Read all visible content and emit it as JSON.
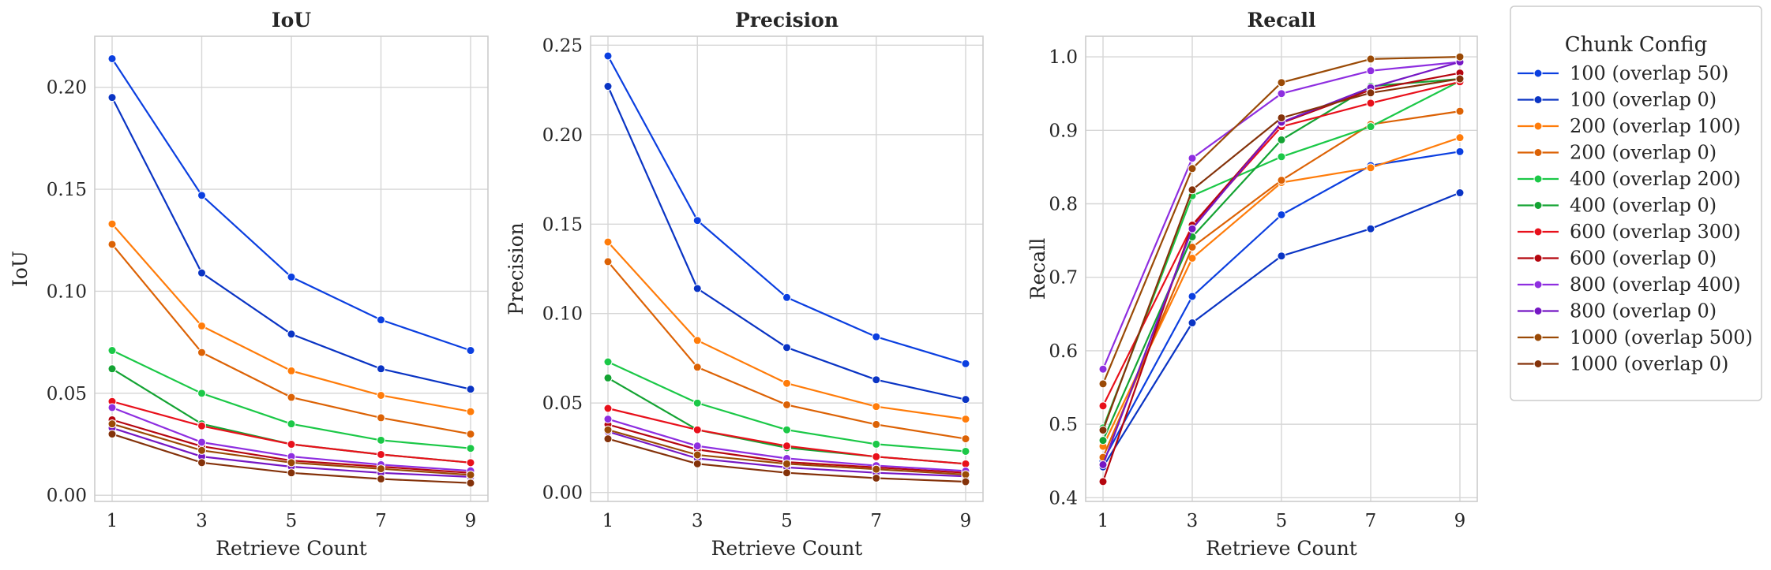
{
  "chart_data": [
    {
      "type": "line",
      "title": "IoU",
      "xlabel": "Retrieve Count",
      "ylabel": "IoU",
      "x": [
        1,
        3,
        5,
        7,
        9
      ],
      "xticks": [
        "1",
        "3",
        "5",
        "7",
        "9"
      ],
      "ylim": [
        -0.003,
        0.225
      ],
      "yticks": [
        "0.00",
        "0.05",
        "0.10",
        "0.15",
        "0.20"
      ],
      "grid": true,
      "series": [
        {
          "name": "100 (overlap 50)",
          "values": [
            0.214,
            0.147,
            0.107,
            0.086,
            0.071
          ]
        },
        {
          "name": "100 (overlap 0)",
          "values": [
            0.195,
            0.109,
            0.079,
            0.062,
            0.052
          ]
        },
        {
          "name": "200 (overlap 100)",
          "values": [
            0.133,
            0.083,
            0.061,
            0.049,
            0.041
          ]
        },
        {
          "name": "200 (overlap 0)",
          "values": [
            0.123,
            0.07,
            0.048,
            0.038,
            0.03
          ]
        },
        {
          "name": "400 (overlap 200)",
          "values": [
            0.071,
            0.05,
            0.035,
            0.027,
            0.023
          ]
        },
        {
          "name": "400 (overlap 0)",
          "values": [
            0.062,
            0.035,
            0.025,
            0.02,
            0.016
          ]
        },
        {
          "name": "600 (overlap 300)",
          "values": [
            0.046,
            0.034,
            0.025,
            0.02,
            0.016
          ]
        },
        {
          "name": "600 (overlap 0)",
          "values": [
            0.037,
            0.024,
            0.017,
            0.014,
            0.011
          ]
        },
        {
          "name": "800 (overlap 400)",
          "values": [
            0.043,
            0.026,
            0.019,
            0.015,
            0.012
          ]
        },
        {
          "name": "800 (overlap 0)",
          "values": [
            0.033,
            0.019,
            0.014,
            0.011,
            0.009
          ]
        },
        {
          "name": "1000 (overlap 500)",
          "values": [
            0.035,
            0.022,
            0.016,
            0.013,
            0.01
          ]
        },
        {
          "name": "1000 (overlap 0)",
          "values": [
            0.03,
            0.016,
            0.011,
            0.008,
            0.006
          ]
        }
      ]
    },
    {
      "type": "line",
      "title": "Precision",
      "xlabel": "Retrieve Count",
      "ylabel": "Precision",
      "x": [
        1,
        3,
        5,
        7,
        9
      ],
      "xticks": [
        "1",
        "3",
        "5",
        "7",
        "9"
      ],
      "ylim": [
        -0.005,
        0.255
      ],
      "yticks": [
        "0.00",
        "0.05",
        "0.10",
        "0.15",
        "0.20",
        "0.25"
      ],
      "grid": true,
      "series": [
        {
          "name": "100 (overlap 50)",
          "values": [
            0.244,
            0.152,
            0.109,
            0.087,
            0.072
          ]
        },
        {
          "name": "100 (overlap 0)",
          "values": [
            0.227,
            0.114,
            0.081,
            0.063,
            0.052
          ]
        },
        {
          "name": "200 (overlap 100)",
          "values": [
            0.14,
            0.085,
            0.061,
            0.048,
            0.041
          ]
        },
        {
          "name": "200 (overlap 0)",
          "values": [
            0.129,
            0.07,
            0.049,
            0.038,
            0.03
          ]
        },
        {
          "name": "400 (overlap 200)",
          "values": [
            0.073,
            0.05,
            0.035,
            0.027,
            0.023
          ]
        },
        {
          "name": "400 (overlap 0)",
          "values": [
            0.064,
            0.035,
            0.025,
            0.02,
            0.016
          ]
        },
        {
          "name": "600 (overlap 300)",
          "values": [
            0.047,
            0.035,
            0.026,
            0.02,
            0.016
          ]
        },
        {
          "name": "600 (overlap 0)",
          "values": [
            0.038,
            0.024,
            0.017,
            0.014,
            0.011
          ]
        },
        {
          "name": "800 (overlap 400)",
          "values": [
            0.041,
            0.026,
            0.019,
            0.015,
            0.012
          ]
        },
        {
          "name": "800 (overlap 0)",
          "values": [
            0.034,
            0.019,
            0.014,
            0.011,
            0.009
          ]
        },
        {
          "name": "1000 (overlap 500)",
          "values": [
            0.035,
            0.021,
            0.016,
            0.013,
            0.01
          ]
        },
        {
          "name": "1000 (overlap 0)",
          "values": [
            0.03,
            0.016,
            0.011,
            0.008,
            0.006
          ]
        }
      ]
    },
    {
      "type": "line",
      "title": "Recall",
      "xlabel": "Retrieve Count",
      "ylabel": "Recall",
      "x": [
        1,
        3,
        5,
        7,
        9
      ],
      "xticks": [
        "1",
        "3",
        "5",
        "7",
        "9"
      ],
      "ylim": [
        0.395,
        1.028
      ],
      "yticks": [
        "0.4",
        "0.5",
        "0.6",
        "0.7",
        "0.8",
        "0.9",
        "1.0"
      ],
      "grid": true,
      "series": [
        {
          "name": "100 (overlap 50)",
          "values": [
            0.45,
            0.674,
            0.785,
            0.852,
            0.871
          ]
        },
        {
          "name": "100 (overlap 0)",
          "values": [
            0.442,
            0.638,
            0.729,
            0.766,
            0.815
          ]
        },
        {
          "name": "200 (overlap 100)",
          "values": [
            0.47,
            0.726,
            0.829,
            0.849,
            0.89
          ]
        },
        {
          "name": "200 (overlap 0)",
          "values": [
            0.455,
            0.741,
            0.832,
            0.908,
            0.926
          ]
        },
        {
          "name": "400 (overlap 200)",
          "values": [
            0.495,
            0.811,
            0.864,
            0.905,
            0.967
          ]
        },
        {
          "name": "400 (overlap 0)",
          "values": [
            0.478,
            0.755,
            0.887,
            0.96,
            0.97
          ]
        },
        {
          "name": "600 (overlap 300)",
          "values": [
            0.525,
            0.77,
            0.905,
            0.937,
            0.966
          ]
        },
        {
          "name": "600 (overlap 0)",
          "values": [
            0.422,
            0.771,
            0.91,
            0.955,
            0.978
          ]
        },
        {
          "name": "800 (overlap 400)",
          "values": [
            0.575,
            0.862,
            0.95,
            0.981,
            0.993
          ]
        },
        {
          "name": "800 (overlap 0)",
          "values": [
            0.445,
            0.766,
            0.911,
            0.958,
            0.993
          ]
        },
        {
          "name": "1000 (overlap 500)",
          "values": [
            0.555,
            0.848,
            0.965,
            0.997,
            1.0
          ]
        },
        {
          "name": "1000 (overlap 0)",
          "values": [
            0.492,
            0.819,
            0.917,
            0.951,
            0.97
          ]
        }
      ]
    }
  ],
  "legend": {
    "title": "Chunk Config",
    "placement": "right",
    "items": [
      "100 (overlap 50)",
      "100 (overlap 0)",
      "200 (overlap 100)",
      "200 (overlap 0)",
      "400 (overlap 200)",
      "400 (overlap 0)",
      "600 (overlap 300)",
      "600 (overlap 0)",
      "800 (overlap 400)",
      "800 (overlap 0)",
      "1000 (overlap 500)",
      "1000 (overlap 0)"
    ]
  },
  "colors": [
    "#0b3fe0",
    "#0a34c4",
    "#ff7c0a",
    "#dc6205",
    "#1bc847",
    "#14a333",
    "#e8101b",
    "#b5060f",
    "#8e2ee0",
    "#7517c4",
    "#9a4a06",
    "#84320a"
  ]
}
